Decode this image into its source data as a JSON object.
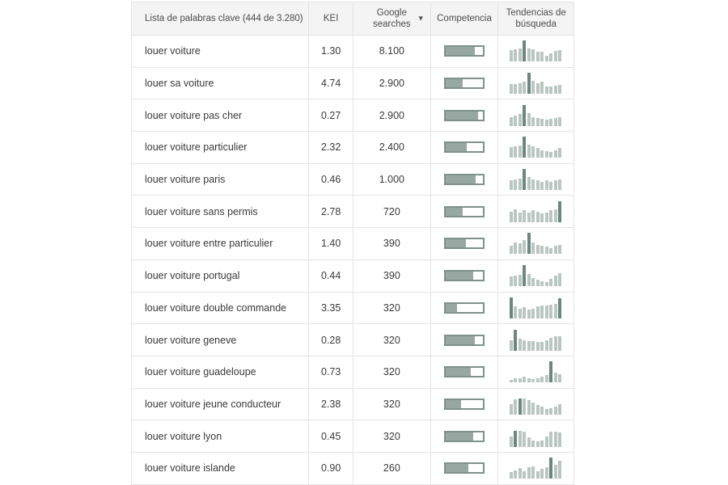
{
  "colors": {
    "header_bg": "#f4f4f4",
    "border": "#e4e4e4",
    "text": "#3a3a3a",
    "bar_fill": "#97a8a3",
    "bar_border": "#7e918c",
    "trend_bar": "#b9c6c2",
    "trend_bar_dark": "#6d8681"
  },
  "table": {
    "headers": {
      "keywords": "Lista de palabras clave (444 de 3.280)",
      "kei": "KEI",
      "searches": "Google searches",
      "competition": "Competencia",
      "trends": "Tendencias de búsqueda"
    },
    "sort_icon": "▼",
    "rows": [
      {
        "keyword": "louer voiture",
        "kei": "1.30",
        "searches": "8.100",
        "competition": 78,
        "trend": [
          55,
          60,
          62,
          100,
          62,
          58,
          46,
          46,
          30,
          40,
          50,
          56
        ],
        "trend_dark": [
          3
        ]
      },
      {
        "keyword": "louer sa voiture",
        "kei": "4.74",
        "searches": "2.900",
        "competition": 45,
        "trend": [
          46,
          46,
          52,
          58,
          100,
          60,
          50,
          56,
          34,
          36,
          40,
          44
        ],
        "trend_dark": [
          4
        ]
      },
      {
        "keyword": "louer voiture pas cher",
        "kei": "0.27",
        "searches": "2.900",
        "competition": 88,
        "trend": [
          42,
          48,
          58,
          100,
          62,
          42,
          36,
          32,
          30,
          32,
          36,
          42
        ],
        "trend_dark": [
          3
        ]
      },
      {
        "keyword": "louer voiture particulier",
        "kei": "2.32",
        "searches": "2.400",
        "competition": 57,
        "trend": [
          50,
          55,
          60,
          100,
          65,
          55,
          48,
          36,
          34,
          30,
          36,
          46
        ],
        "trend_dark": [
          3
        ]
      },
      {
        "keyword": "louer voiture paris",
        "kei": "0.46",
        "searches": "1.000",
        "competition": 80,
        "trend": [
          48,
          52,
          56,
          100,
          62,
          52,
          46,
          40,
          46,
          40,
          46,
          52
        ],
        "trend_dark": [
          3
        ]
      },
      {
        "keyword": "louer voiture sans permis",
        "kei": "2.78",
        "searches": "720",
        "competition": 45,
        "trend": [
          50,
          62,
          46,
          56,
          46,
          56,
          50,
          40,
          46,
          56,
          62,
          100
        ],
        "trend_dark": [
          11
        ]
      },
      {
        "keyword": "louer voiture entre particulier",
        "kei": "1.40",
        "searches": "390",
        "competition": 55,
        "trend": [
          40,
          56,
          50,
          66,
          100,
          56,
          46,
          40,
          36,
          30,
          42,
          46
        ],
        "trend_dark": [
          4
        ]
      },
      {
        "keyword": "louer voiture portugal",
        "kei": "0.44",
        "searches": "390",
        "competition": 73,
        "trend": [
          46,
          52,
          56,
          100,
          60,
          40,
          30,
          24,
          20,
          36,
          52,
          62
        ],
        "trend_dark": [
          3
        ]
      },
      {
        "keyword": "louer voiture double commande",
        "kei": "3.35",
        "searches": "320",
        "competition": 30,
        "trend": [
          100,
          56,
          46,
          52,
          42,
          46,
          56,
          62,
          62,
          66,
          70,
          95
        ],
        "trend_dark": [
          0,
          11
        ]
      },
      {
        "keyword": "louer voiture geneve",
        "kei": "0.28",
        "searches": "320",
        "competition": 78,
        "trend": [
          50,
          100,
          56,
          50,
          46,
          46,
          40,
          40,
          50,
          60,
          66,
          66
        ],
        "trend_dark": [
          1
        ]
      },
      {
        "keyword": "louer voiture guadeloupe",
        "kei": "0.73",
        "searches": "320",
        "competition": 68,
        "trend": [
          14,
          20,
          20,
          26,
          20,
          16,
          20,
          26,
          36,
          100,
          46,
          40
        ],
        "trend_dark": [
          9
        ]
      },
      {
        "keyword": "louer voiture jeune conducteur",
        "kei": "2.38",
        "searches": "320",
        "competition": 42,
        "trend": [
          50,
          72,
          76,
          76,
          70,
          56,
          46,
          40,
          26,
          30,
          40,
          50
        ],
        "trend_dark": [
          2
        ]
      },
      {
        "keyword": "louer voiture lyon",
        "kei": "0.45",
        "searches": "320",
        "competition": 73,
        "trend": [
          50,
          76,
          76,
          70,
          46,
          30,
          26,
          30,
          50,
          70,
          70,
          66
        ],
        "trend_dark": [
          1
        ]
      },
      {
        "keyword": "louer voiture islande",
        "kei": "0.90",
        "searches": "260",
        "competition": 60,
        "trend": [
          30,
          40,
          50,
          36,
          56,
          60,
          36,
          46,
          56,
          100,
          66,
          86
        ],
        "trend_dark": [
          9
        ]
      }
    ]
  },
  "chart_data": {
    "type": "table",
    "title": "Lista de palabras clave (444 de 3.280)",
    "columns": [
      "keyword",
      "KEI",
      "Google searches",
      "Competencia",
      "Tendencias de búsqueda"
    ],
    "note": "Competencia is a 0-100 progress bar; Tendencias is a 12-bar sparkline per row (values in rows[].trend)"
  }
}
